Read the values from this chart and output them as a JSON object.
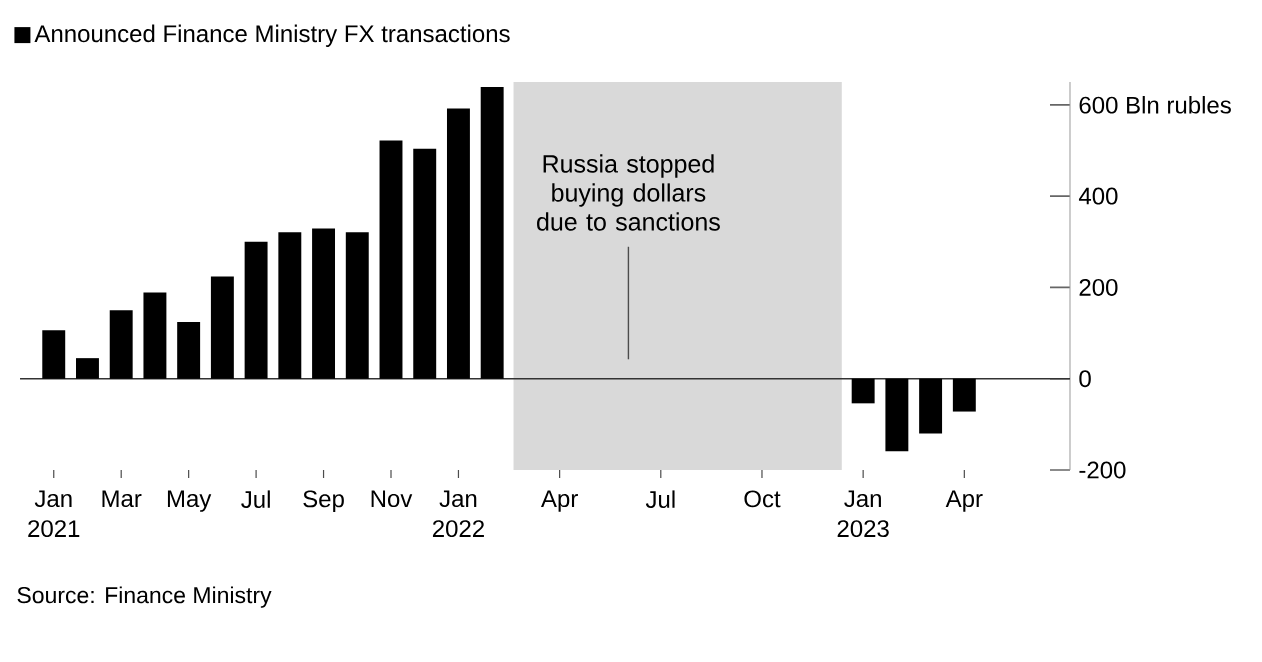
{
  "chart_data": {
    "type": "bar",
    "x": [
      "2021-01",
      "2021-02",
      "2021-03",
      "2021-04",
      "2021-05",
      "2021-06",
      "2021-07",
      "2021-08",
      "2021-09",
      "2021-10",
      "2021-11",
      "2021-12",
      "2022-01",
      "2022-02",
      "2023-01",
      "2023-02",
      "2023-03",
      "2023-04"
    ],
    "series": [
      {
        "name": "Announced Finance Ministry FX transactions",
        "color": "#000000",
        "values": [
          106,
          45,
          150,
          189,
          124,
          224,
          300,
          321,
          329,
          321,
          522,
          504,
          592,
          639,
          -54,
          -159,
          -120,
          -72
        ]
      }
    ],
    "xlim": [
      "2020-12-01",
      "2023-07-05"
    ],
    "xticks": [
      {
        "value": "2021-01",
        "label": "Jan 2021"
      },
      {
        "value": "2021-03",
        "label": "Mar"
      },
      {
        "value": "2021-05",
        "label": "May"
      },
      {
        "value": "2021-07",
        "label": "Jul"
      },
      {
        "value": "2021-09",
        "label": "Sep"
      },
      {
        "value": "2021-11",
        "label": "Nov"
      },
      {
        "value": "2022-01",
        "label": "Jan 2022"
      },
      {
        "value": "2022-04",
        "label": "Apr"
      },
      {
        "value": "2022-07",
        "label": "Jul"
      },
      {
        "value": "2022-10",
        "label": "Oct"
      },
      {
        "value": "2023-01",
        "label": "Jan 2023"
      },
      {
        "value": "2023-04",
        "label": "Apr"
      }
    ],
    "ylim": [
      -200,
      650
    ],
    "yticks": [
      {
        "value": 600,
        "label": "600 Bln rubles"
      },
      400,
      200,
      0,
      -200
    ],
    "ref_lines": [
      {
        "axis": "y",
        "value": 0,
        "color": "#333333"
      }
    ],
    "bands": [
      {
        "axis": "x",
        "from": "2022-02-20",
        "to": "2022-12-12",
        "color": "#d9d9d9"
      }
    ],
    "annotations": [
      "Russia stopped buying dollars due to sanctions",
      "Source: Finance Ministry"
    ],
    "legend": "top left"
  }
}
